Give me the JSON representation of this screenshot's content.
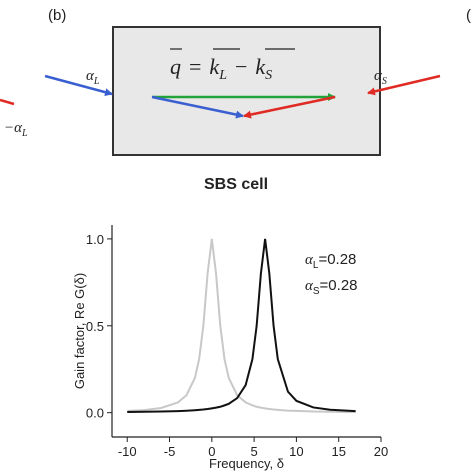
{
  "diagram": {
    "panel_label": "(b)",
    "right_fragment": "(",
    "left_fragment": {
      "symbol": "−α",
      "subscript": "L"
    },
    "equation": {
      "lhs": "q",
      "eq": "=",
      "k1": "k",
      "k1_sub": "L",
      "op": "−",
      "k2": "k",
      "k2_sub": "S"
    },
    "alpha_left": {
      "symbol": "α",
      "subscript": "L"
    },
    "alpha_right": {
      "symbol": "α",
      "subscript": "S"
    },
    "caption": "SBS cell"
  },
  "chart_data": {
    "type": "line",
    "x": [
      -10,
      -8,
      -6,
      -4,
      -3,
      -2,
      -1.5,
      -1,
      -0.5,
      0,
      0.5,
      1,
      1.5,
      2,
      3,
      4,
      4.8,
      5.3,
      5.8,
      6.3,
      6.8,
      7.3,
      7.8,
      9,
      10,
      12,
      14,
      17
    ],
    "series": [
      {
        "color": "#c8c8c8",
        "values": [
          0.01,
          0.015,
          0.027,
          0.059,
          0.1,
          0.2,
          0.308,
          0.5,
          0.8,
          1,
          0.8,
          0.5,
          0.308,
          0.2,
          0.1,
          0.059,
          0.042,
          0.034,
          0.029,
          0.025,
          0.021,
          0.018,
          0.016,
          0.012,
          0.01,
          0.007,
          0.005,
          0.003
        ]
      },
      {
        "color": "#111111",
        "values": [
          0.004,
          0.005,
          0.007,
          0.009,
          0.011,
          0.014,
          0.016,
          0.018,
          0.021,
          0.025,
          0.029,
          0.034,
          0.042,
          0.051,
          0.084,
          0.159,
          0.308,
          0.5,
          0.8,
          1,
          0.8,
          0.5,
          0.308,
          0.121,
          0.068,
          0.03,
          0.017,
          0.009
        ]
      }
    ],
    "xlim": [
      -11.8,
      20
    ],
    "ylim": [
      -0.14,
      1.08
    ],
    "xticks": [
      -10,
      -5,
      0,
      5,
      10,
      15,
      20
    ],
    "yticks": [
      {
        "value": 0,
        "label": "0.0"
      },
      0.5,
      {
        "value": 1,
        "label": "1.0"
      }
    ],
    "xlabel": "Frequency, δ",
    "ylabel": "Gain factor, Re G(δ)",
    "annotations": [
      {
        "symbol": "α",
        "subscript": "L",
        "text": "=0.28"
      },
      {
        "symbol": "α",
        "subscript": "S",
        "text": "=0.28"
      }
    ]
  }
}
